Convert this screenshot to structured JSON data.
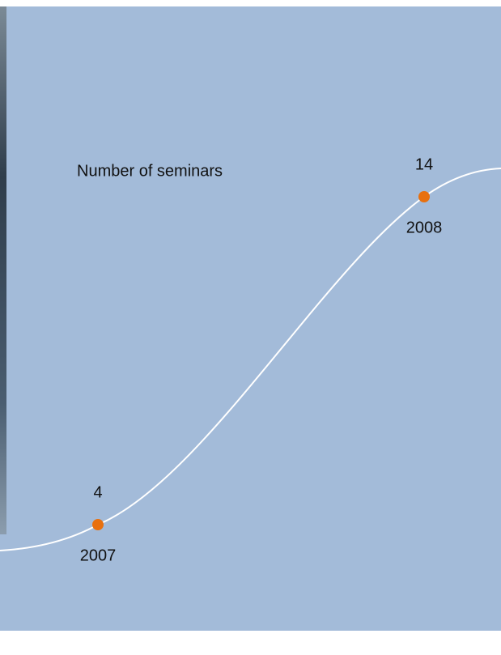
{
  "chart_data": {
    "type": "line",
    "title": "Number of seminars",
    "categories": [
      "2007",
      "2008"
    ],
    "values": [
      4,
      14
    ],
    "color": "#ffffff",
    "marker_color": "#e8700f"
  }
}
